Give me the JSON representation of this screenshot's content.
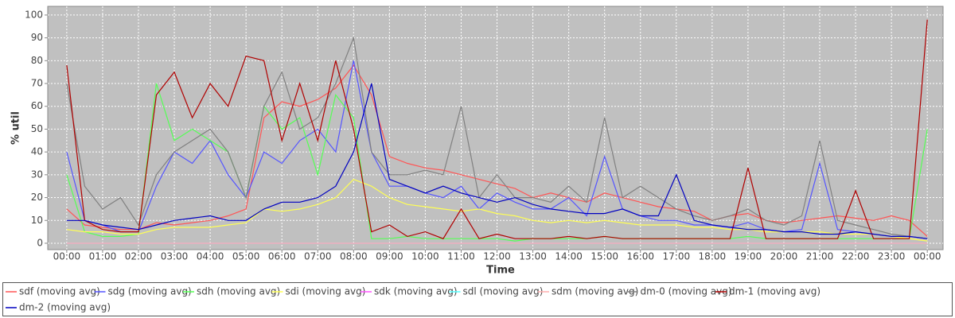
{
  "chart_data": {
    "type": "line",
    "y_label": "% util",
    "x_label": "Time",
    "xlim": [
      -0.53,
      24.44
    ],
    "ylim": [
      -2.8,
      103.8
    ],
    "xticks": [
      {
        "value": 0,
        "label": "00:00"
      },
      {
        "value": 1,
        "label": "01:00"
      },
      {
        "value": 2,
        "label": "02:00"
      },
      {
        "value": 3,
        "label": "03:00"
      },
      {
        "value": 4,
        "label": "04:00"
      },
      {
        "value": 5,
        "label": "05:00"
      },
      {
        "value": 6,
        "label": "06:00"
      },
      {
        "value": 7,
        "label": "07:00"
      },
      {
        "value": 8,
        "label": "08:00"
      },
      {
        "value": 9,
        "label": "09:00"
      },
      {
        "value": 10,
        "label": "10:00"
      },
      {
        "value": 11,
        "label": "11:00"
      },
      {
        "value": 12,
        "label": "12:00"
      },
      {
        "value": 13,
        "label": "13:00"
      },
      {
        "value": 14,
        "label": "14:00"
      },
      {
        "value": 15,
        "label": "15:00"
      },
      {
        "value": 16,
        "label": "16:00"
      },
      {
        "value": 17,
        "label": "17:00"
      },
      {
        "value": 18,
        "label": "18:00"
      },
      {
        "value": 19,
        "label": "19:00"
      },
      {
        "value": 20,
        "label": "20:00"
      },
      {
        "value": 21,
        "label": "21:00"
      },
      {
        "value": 22,
        "label": "22:00"
      },
      {
        "value": 23,
        "label": "23:00"
      },
      {
        "value": 24,
        "label": "00:00"
      }
    ],
    "yticks": [
      0,
      10,
      20,
      30,
      40,
      50,
      60,
      70,
      80,
      90,
      100
    ],
    "grid": true,
    "legend": "bottom",
    "x": [
      0,
      0.5,
      1,
      1.5,
      2,
      2.5,
      3,
      3.5,
      4,
      4.5,
      5,
      5.5,
      6,
      6.5,
      7,
      7.5,
      8,
      8.5,
      9,
      9.5,
      10,
      10.5,
      11,
      11.5,
      12,
      12.5,
      13,
      13.5,
      14,
      14.5,
      15,
      15.5,
      16,
      16.5,
      17,
      17.5,
      18,
      18.5,
      19,
      19.5,
      20,
      20.5,
      21,
      21.5,
      22,
      22.5,
      23,
      23.5,
      24
    ],
    "series": [
      {
        "name": "sdf (moving avg)",
        "color": "#ff5555",
        "values": [
          15,
          8,
          7,
          6,
          6,
          9,
          8,
          9,
          10,
          12,
          15,
          55,
          62,
          60,
          63,
          68,
          78,
          65,
          38,
          35,
          33,
          32,
          30,
          28,
          26,
          24,
          20,
          22,
          20,
          18,
          22,
          20,
          18,
          16,
          15,
          14,
          10,
          12,
          13,
          10,
          9,
          10,
          11,
          12,
          11,
          10,
          12,
          10,
          3
        ]
      },
      {
        "name": "sdg (moving avg)",
        "color": "#5555ff",
        "values": [
          40,
          10,
          8,
          5,
          5,
          25,
          40,
          35,
          45,
          30,
          20,
          40,
          35,
          45,
          50,
          40,
          80,
          40,
          25,
          25,
          22,
          20,
          25,
          15,
          22,
          18,
          15,
          15,
          20,
          12,
          38,
          15,
          12,
          10,
          10,
          8,
          8,
          7,
          9,
          6,
          5,
          6,
          35,
          6,
          5,
          4,
          3,
          3,
          2
        ]
      },
      {
        "name": "sdh (moving avg)",
        "color": "#55ff55",
        "values": [
          30,
          5,
          3,
          3,
          4,
          70,
          45,
          50,
          45,
          40,
          20,
          60,
          50,
          55,
          30,
          65,
          55,
          2,
          2,
          3,
          2,
          2,
          2,
          2,
          2,
          1,
          2,
          2,
          2,
          2,
          3,
          2,
          2,
          2,
          2,
          2,
          2,
          2,
          3,
          2,
          2,
          2,
          2,
          2,
          2,
          2,
          2,
          2,
          50
        ]
      },
      {
        "name": "sdi (moving avg)",
        "color": "#ffff55",
        "values": [
          6,
          5,
          5,
          4,
          4,
          6,
          7,
          7,
          7,
          8,
          9,
          15,
          14,
          15,
          17,
          20,
          28,
          25,
          20,
          17,
          16,
          15,
          14,
          15,
          13,
          12,
          10,
          9,
          10,
          9,
          10,
          9,
          8,
          8,
          8,
          7,
          7,
          6,
          6,
          5,
          5,
          5,
          5,
          4,
          4,
          4,
          3,
          2,
          1
        ]
      },
      {
        "name": "sdk (moving avg)",
        "color": "#ff55ff",
        "values": [
          0,
          0,
          0,
          0,
          0,
          0,
          0,
          0,
          0,
          0,
          0,
          0,
          0,
          0,
          0,
          0,
          0,
          0,
          0,
          0,
          0,
          0,
          0,
          0,
          0,
          0,
          0,
          0,
          0,
          0,
          0,
          0,
          0,
          0,
          0,
          0,
          0,
          0,
          0,
          0,
          0,
          0,
          0,
          0,
          0,
          0,
          0,
          0,
          0
        ]
      },
      {
        "name": "sdl (moving avg)",
        "color": "#55ffff",
        "values": [
          0,
          0,
          0,
          0,
          0,
          0,
          0,
          0,
          0,
          0,
          0,
          0,
          0,
          0,
          0,
          0,
          0,
          0,
          0,
          0,
          0,
          0,
          0,
          0,
          0,
          0,
          0,
          0,
          0,
          0,
          0,
          0,
          0,
          0,
          0,
          0,
          0,
          0,
          0,
          0,
          0,
          0,
          0,
          0,
          0,
          0,
          0,
          0,
          0
        ]
      },
      {
        "name": "sdm (moving avg)",
        "color": "#ffafaf",
        "values": [
          0,
          0,
          0,
          0,
          0,
          0,
          0,
          0,
          0,
          0,
          0,
          0,
          0,
          0,
          0,
          0,
          0,
          0,
          0,
          0,
          0,
          0,
          0,
          0,
          0,
          0,
          0,
          0,
          0,
          0,
          0,
          0,
          0,
          0,
          0,
          0,
          0,
          0,
          0,
          0,
          0,
          0,
          0,
          0,
          0,
          0,
          0,
          0,
          0
        ]
      },
      {
        "name": "dm-0 (moving avg)",
        "color": "#808080",
        "values": [
          70,
          25,
          15,
          20,
          8,
          30,
          40,
          45,
          50,
          40,
          20,
          60,
          75,
          50,
          55,
          70,
          90,
          40,
          30,
          30,
          32,
          30,
          60,
          20,
          30,
          20,
          20,
          18,
          25,
          18,
          55,
          20,
          25,
          20,
          15,
          12,
          10,
          12,
          15,
          10,
          8,
          12,
          45,
          10,
          8,
          6,
          4,
          3,
          2
        ]
      },
      {
        "name": "dm-1 (moving avg)",
        "color": "#b00000",
        "values": [
          78,
          10,
          6,
          5,
          5,
          65,
          75,
          55,
          70,
          60,
          82,
          80,
          45,
          70,
          45,
          80,
          50,
          5,
          8,
          3,
          5,
          2,
          15,
          2,
          4,
          2,
          2,
          2,
          3,
          2,
          3,
          2,
          2,
          2,
          2,
          2,
          2,
          2,
          33,
          2,
          2,
          2,
          2,
          2,
          23,
          2,
          2,
          2,
          98
        ]
      },
      {
        "name": "dm-2 (moving avg)",
        "color": "#0000c0",
        "values": [
          10,
          10,
          8,
          7,
          6,
          8,
          10,
          11,
          12,
          10,
          10,
          15,
          18,
          18,
          20,
          25,
          40,
          70,
          28,
          25,
          22,
          25,
          22,
          20,
          18,
          20,
          17,
          15,
          14,
          13,
          13,
          15,
          12,
          12,
          30,
          10,
          8,
          7,
          6,
          6,
          5,
          5,
          4,
          4,
          5,
          4,
          3,
          3,
          2
        ]
      }
    ]
  }
}
